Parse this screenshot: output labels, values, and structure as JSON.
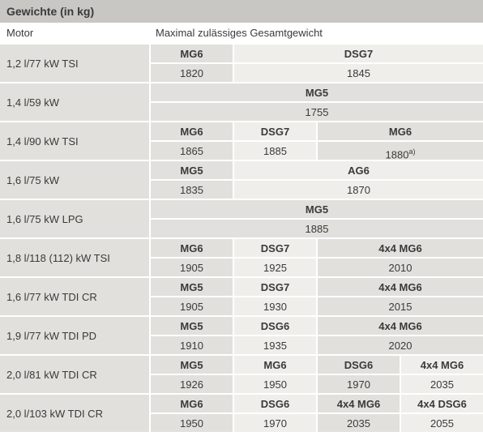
{
  "title": "Gewichte (in kg)",
  "col1_header": "Motor",
  "col2_header": "Maximal zulässiges Gesamtgewicht",
  "rows": [
    {
      "motor": "1,2 l/77 kW TSI",
      "spans": [
        1,
        3
      ],
      "labels": [
        "MG6",
        "DSG7"
      ],
      "values": [
        "1820",
        "1845"
      ]
    },
    {
      "motor": "1,4 l/59 kW",
      "spans": [
        4
      ],
      "labels": [
        "MG5"
      ],
      "values": [
        "1755"
      ]
    },
    {
      "motor": "1,4 l/90 kW TSI",
      "spans": [
        1,
        1,
        2
      ],
      "labels": [
        "MG6",
        "DSG7",
        "MG6"
      ],
      "values": [
        "1865",
        "1885",
        "1880"
      ],
      "sup": {
        "2": "a)"
      }
    },
    {
      "motor": "1,6 l/75 kW",
      "spans": [
        1,
        3
      ],
      "labels": [
        "MG5",
        "AG6"
      ],
      "values": [
        "1835",
        "1870"
      ]
    },
    {
      "motor": "1,6 l/75 kW LPG",
      "spans": [
        4
      ],
      "labels": [
        "MG5"
      ],
      "values": [
        "1885"
      ]
    },
    {
      "motor": "1,8 l/118 (112) kW TSI",
      "spans": [
        1,
        1,
        2
      ],
      "labels": [
        "MG6",
        "DSG7",
        "4x4 MG6"
      ],
      "values": [
        "1905",
        "1925",
        "2010"
      ]
    },
    {
      "motor": "1,6 l/77 kW TDI CR",
      "spans": [
        1,
        1,
        2
      ],
      "labels": [
        "MG5",
        "DSG7",
        "4x4 MG6"
      ],
      "values": [
        "1905",
        "1930",
        "2015"
      ]
    },
    {
      "motor": "1,9 l/77 kW TDI PD",
      "spans": [
        1,
        1,
        2
      ],
      "labels": [
        "MG5",
        "DSG6",
        "4x4 MG6"
      ],
      "values": [
        "1910",
        "1935",
        "2020"
      ]
    },
    {
      "motor": "2,0 l/81 kW TDI CR",
      "spans": [
        1,
        1,
        1,
        1
      ],
      "labels": [
        "MG5",
        "MG6",
        "DSG6",
        "4x4 MG6"
      ],
      "values": [
        "1926",
        "1950",
        "1970",
        "2035"
      ]
    },
    {
      "motor": "2,0 l/103 kW TDI CR",
      "spans": [
        1,
        1,
        1,
        1
      ],
      "labels": [
        "MG6",
        "DSG6",
        "4x4 MG6",
        "4x4 DSG6"
      ],
      "values": [
        "1950",
        "1970",
        "2035",
        "2055"
      ]
    }
  ],
  "colors": {
    "header_bg": "#c9c7c3",
    "dark_cell": "#e2e0dc",
    "light_cell": "#efeeea",
    "text": "#3a3a3a"
  }
}
